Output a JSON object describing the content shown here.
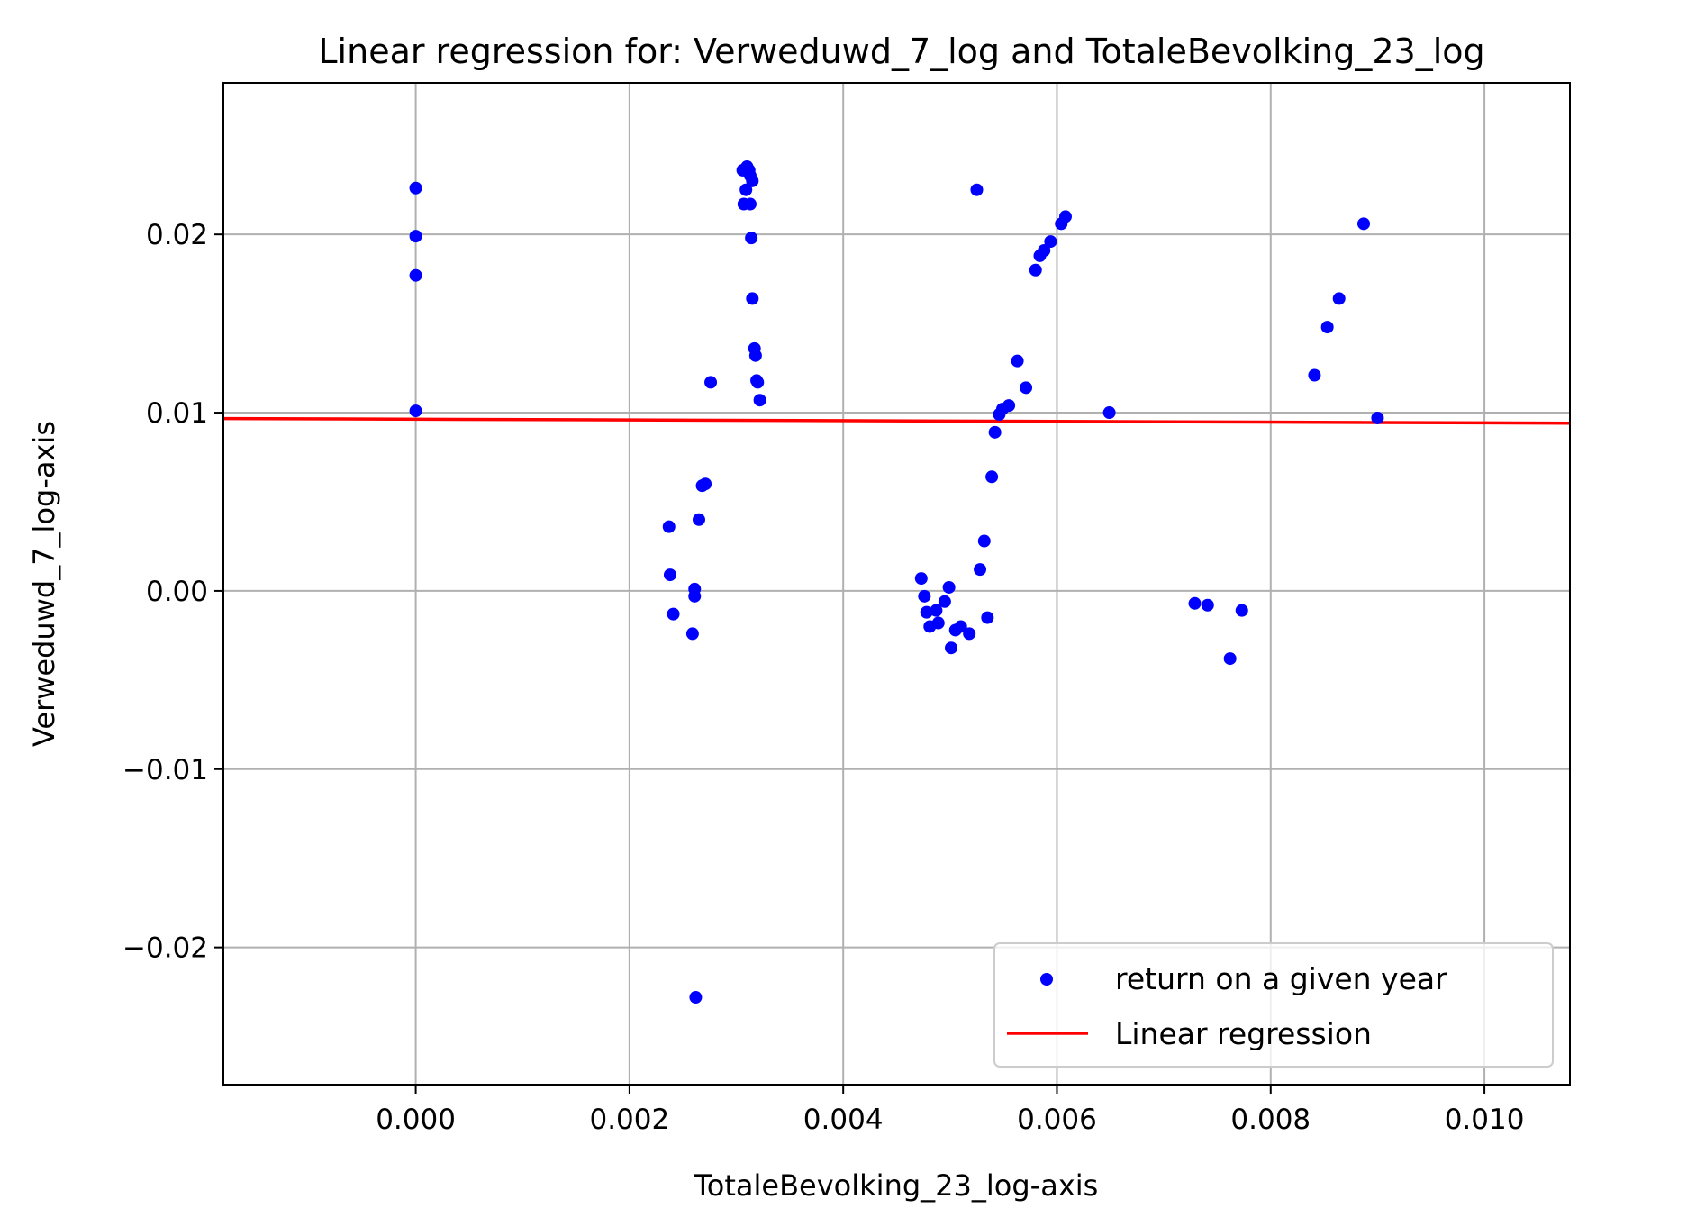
{
  "chart_data": {
    "type": "scatter",
    "title": "Linear regression for: Verweduwd_7_log and TotaleBevolking_23_log",
    "xlabel": "TotaleBevolking_23_log-axis",
    "ylabel": "Verweduwd_7_log-axis",
    "xlim": [
      -0.0018,
      0.0108
    ],
    "ylim": [
      -0.0277,
      0.0285
    ],
    "x_ticks": [
      0.0,
      0.002,
      0.004,
      0.006,
      0.008,
      0.01
    ],
    "x_tick_labels": [
      "0.000",
      "0.002",
      "0.004",
      "0.006",
      "0.008",
      "0.010"
    ],
    "y_ticks": [
      -0.02,
      -0.01,
      0.0,
      0.01,
      0.02
    ],
    "y_tick_labels": [
      "−0.02",
      "−0.01",
      "0.00",
      "0.01",
      "0.02"
    ],
    "grid": true,
    "legend_position": "lower-right",
    "colors": {
      "points": "#0000ff",
      "regression": "#ff0000",
      "grid": "#b0b0b0",
      "frame": "#000000"
    },
    "series": [
      {
        "name": "return on a given year",
        "type": "scatter",
        "points": [
          [
            0.0,
            0.0226
          ],
          [
            0.0,
            0.0199
          ],
          [
            0.0,
            0.0177
          ],
          [
            0.0,
            0.0101
          ],
          [
            0.00237,
            0.0036
          ],
          [
            0.00238,
            0.0009
          ],
          [
            0.00241,
            -0.0013
          ],
          [
            0.00259,
            -0.0024
          ],
          [
            0.00261,
            0.0001
          ],
          [
            0.00261,
            -0.0003
          ],
          [
            0.00265,
            0.004
          ],
          [
            0.00268,
            0.0059
          ],
          [
            0.00271,
            0.006
          ],
          [
            0.00276,
            0.0117
          ],
          [
            0.00262,
            -0.0228
          ],
          [
            0.00306,
            0.0236
          ],
          [
            0.00309,
            0.0225
          ],
          [
            0.0031,
            0.0238
          ],
          [
            0.00312,
            0.0236
          ],
          [
            0.00313,
            0.0233
          ],
          [
            0.00315,
            0.023
          ],
          [
            0.00307,
            0.0217
          ],
          [
            0.00313,
            0.0217
          ],
          [
            0.00314,
            0.0198
          ],
          [
            0.00315,
            0.0164
          ],
          [
            0.00317,
            0.0136
          ],
          [
            0.00318,
            0.0132
          ],
          [
            0.00319,
            0.0118
          ],
          [
            0.0032,
            0.0117
          ],
          [
            0.00322,
            0.0107
          ],
          [
            0.00473,
            0.0007
          ],
          [
            0.00476,
            -0.0003
          ],
          [
            0.00478,
            -0.0012
          ],
          [
            0.00481,
            -0.002
          ],
          [
            0.00487,
            -0.0011
          ],
          [
            0.00489,
            -0.0018
          ],
          [
            0.00495,
            -0.0006
          ],
          [
            0.00499,
            0.0002
          ],
          [
            0.00501,
            -0.0032
          ],
          [
            0.00505,
            -0.0022
          ],
          [
            0.0051,
            -0.002
          ],
          [
            0.00518,
            -0.0024
          ],
          [
            0.00528,
            0.0012
          ],
          [
            0.00532,
            0.0028
          ],
          [
            0.00535,
            -0.0015
          ],
          [
            0.00539,
            0.0064
          ],
          [
            0.00542,
            0.0089
          ],
          [
            0.00546,
            0.0099
          ],
          [
            0.00549,
            0.0102
          ],
          [
            0.00555,
            0.0104
          ],
          [
            0.00563,
            0.0129
          ],
          [
            0.00571,
            0.0114
          ],
          [
            0.00525,
            0.0225
          ],
          [
            0.0058,
            0.018
          ],
          [
            0.00584,
            0.0188
          ],
          [
            0.00588,
            0.0191
          ],
          [
            0.00594,
            0.0196
          ],
          [
            0.00604,
            0.0206
          ],
          [
            0.00608,
            0.021
          ],
          [
            0.00649,
            0.01
          ],
          [
            0.00729,
            -0.0007
          ],
          [
            0.00741,
            -0.0008
          ],
          [
            0.00762,
            -0.0038
          ],
          [
            0.00773,
            -0.0011
          ],
          [
            0.00841,
            0.0121
          ],
          [
            0.00853,
            0.0148
          ],
          [
            0.00864,
            0.0164
          ],
          [
            0.00887,
            0.0206
          ],
          [
            0.009,
            0.0097
          ]
        ]
      },
      {
        "name": "Linear regression",
        "type": "line",
        "x": [
          -0.0018,
          0.0108
        ],
        "y": [
          0.00967,
          0.00941
        ]
      }
    ]
  }
}
